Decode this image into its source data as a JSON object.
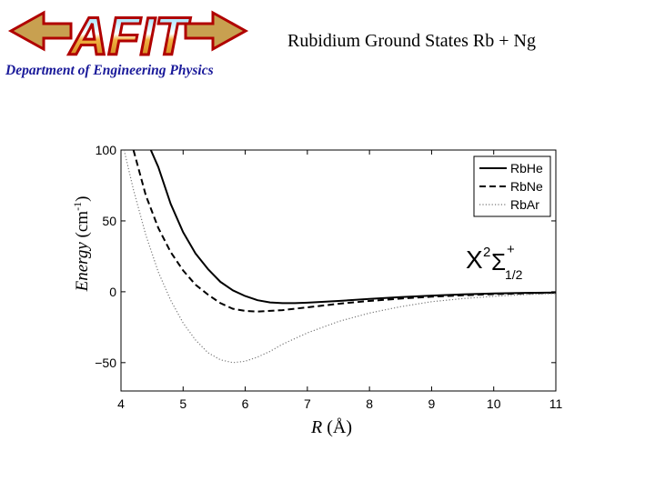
{
  "header": {
    "title": "Rubidium Ground States Rb + Ng",
    "department": "Department of Engineering Physics",
    "logo_text": "AFIT"
  },
  "chart_data": {
    "type": "line",
    "xlabel_symbol": "R",
    "xlabel_unit": "(Å)",
    "ylabel_symbol": "Energy",
    "ylabel_unit": "(cm",
    "ylabel_unit_sup": "-1",
    "ylabel_unit_close": ")",
    "xlim": [
      4,
      11
    ],
    "ylim": [
      -70,
      100
    ],
    "xticks": [
      4,
      5,
      6,
      7,
      8,
      9,
      10,
      11
    ],
    "yticks": [
      -50,
      0,
      50,
      100
    ],
    "ytick_labels": [
      "−50",
      "0",
      "50",
      "100"
    ],
    "grid": false,
    "legend_position": "top-right",
    "annotation": {
      "text": "X",
      "sup": "2",
      "symbol": "Σ",
      "sup_sign": "+",
      "sub": "1/2"
    },
    "series": [
      {
        "name": "RbHe",
        "style": "solid",
        "color": "#000000",
        "x": [
          4.48,
          4.6,
          4.8,
          5.0,
          5.2,
          5.4,
          5.6,
          5.8,
          6.0,
          6.2,
          6.4,
          6.6,
          6.8,
          7.0,
          7.5,
          8.0,
          8.5,
          9.0,
          9.5,
          10.0,
          10.5,
          11.0
        ],
        "y": [
          100,
          88,
          62,
          42,
          27,
          16,
          7,
          1,
          -3,
          -6,
          -7.5,
          -8,
          -8,
          -7.7,
          -6.5,
          -5,
          -3.8,
          -2.7,
          -1.8,
          -1.2,
          -0.8,
          -0.5
        ]
      },
      {
        "name": "RbNe",
        "style": "dashed",
        "color": "#000000",
        "x": [
          4.2,
          4.4,
          4.6,
          4.8,
          5.0,
          5.2,
          5.4,
          5.6,
          5.8,
          6.0,
          6.2,
          6.4,
          6.6,
          7.0,
          7.5,
          8.0,
          8.5,
          9.0,
          9.5,
          10.0,
          10.5,
          11.0
        ],
        "y": [
          100,
          68,
          45,
          28,
          15,
          5,
          -2,
          -8,
          -12,
          -13.5,
          -14,
          -13.5,
          -13,
          -11,
          -8.5,
          -6.5,
          -4.8,
          -3.5,
          -2.5,
          -1.7,
          -1.1,
          -0.7
        ]
      },
      {
        "name": "RbAr",
        "style": "dotted",
        "color": "#777777",
        "x": [
          4.05,
          4.2,
          4.4,
          4.6,
          4.8,
          5.0,
          5.2,
          5.4,
          5.6,
          5.8,
          6.0,
          6.2,
          6.4,
          6.6,
          7.0,
          7.5,
          8.0,
          8.5,
          9.0,
          9.5,
          10.0,
          10.5,
          11.0
        ],
        "y": [
          100,
          72,
          40,
          14,
          -6,
          -22,
          -34,
          -43,
          -48,
          -50,
          -49,
          -46,
          -42,
          -37,
          -29,
          -21,
          -15,
          -10.5,
          -7,
          -4.8,
          -3.2,
          -2,
          -1.2
        ]
      }
    ]
  }
}
